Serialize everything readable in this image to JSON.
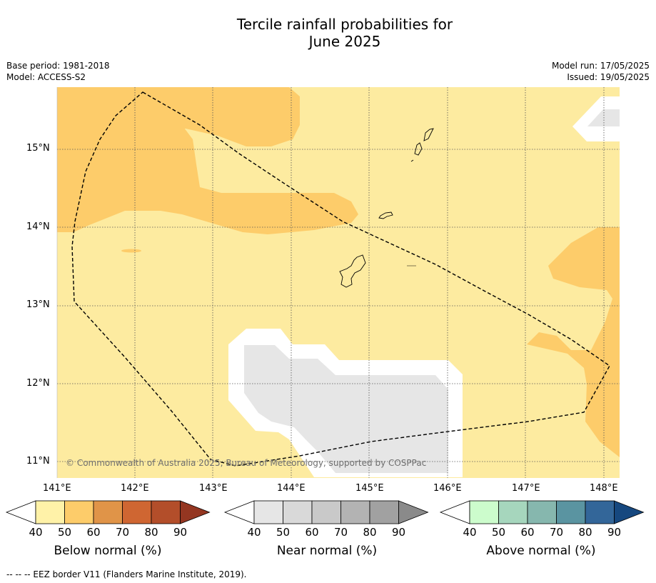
{
  "title_line1": "Tercile rainfall probabilities for",
  "title_line2": "June 2025",
  "meta": {
    "base_period": "Base period: 1981-2018",
    "model": "Model: ACCESS-S2",
    "model_run": "Model run: 17/05/2025",
    "issued": "Issued: 19/05/2025"
  },
  "map": {
    "lat_labels": [
      "15°N",
      "14°N",
      "13°N",
      "12°N",
      "11°N"
    ],
    "lon_labels": [
      "141°E",
      "142°E",
      "143°E",
      "144°E",
      "145°E",
      "146°E",
      "147°E",
      "148°E"
    ],
    "copyright": "© Commonwealth of Australia 2025, Bureau of Meteorology, supported by COSPPac",
    "colors": {
      "below_40_50": "#fdeba0",
      "below_50_60": "#fdcc6a",
      "near_40_50": "#e6e6e6",
      "white_gap": "#ffffff"
    }
  },
  "colorbars": [
    {
      "title": "Below normal (%)",
      "ticks": [
        "40",
        "50",
        "60",
        "70",
        "80",
        "90"
      ],
      "colors": [
        "#fff2a8",
        "#fdcc6a",
        "#e09448",
        "#cf6632",
        "#b34e2a",
        "#943621"
      ]
    },
    {
      "title": "Near normal (%)",
      "ticks": [
        "40",
        "50",
        "60",
        "70",
        "80",
        "90"
      ],
      "colors": [
        "#e6e6e6",
        "#d9d9d9",
        "#c9c9c9",
        "#b3b3b3",
        "#a1a1a1",
        "#8a8a8a"
      ]
    },
    {
      "title": "Above normal (%)",
      "ticks": [
        "40",
        "50",
        "60",
        "70",
        "80",
        "90"
      ],
      "colors": [
        "#ccfccc",
        "#a6d6bd",
        "#86b7ae",
        "#5a94a1",
        "#336699",
        "#16487f"
      ]
    }
  ],
  "footer": "--  --  -- EEZ border V11 (Flanders Marine Institute, 2019)."
}
